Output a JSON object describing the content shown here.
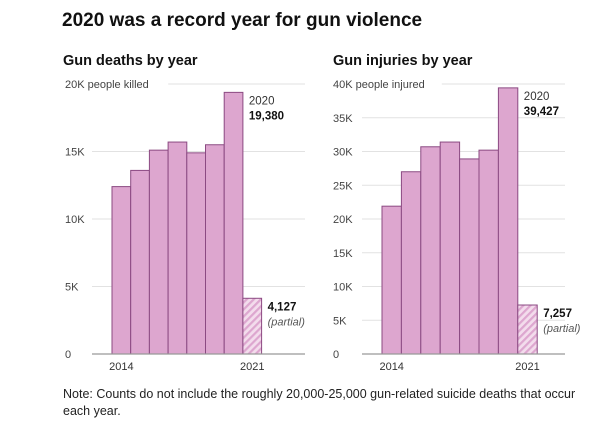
{
  "title": "2020 was a record year for gun violence",
  "note": "Note: Counts do not include the roughly 20,000-25,000 gun-related suicide deaths that occur each year.",
  "colors": {
    "bar_fill": "#dda6cf",
    "bar_stroke": "#8b4a82",
    "hatch_fill": "#f3dcec",
    "grid": "#e2e2e2",
    "axis": "#999999"
  },
  "chart_data": [
    {
      "type": "bar",
      "title": "Gun deaths by year",
      "ylabel": "people killed",
      "top_tick_label": "20K people killed",
      "ylim": [
        0,
        20000
      ],
      "yticks": [
        0,
        5000,
        10000,
        15000,
        20000
      ],
      "ytick_labels": [
        "0",
        "5K",
        "10K",
        "15K",
        "20K people killed"
      ],
      "categories": [
        "2014",
        "2015",
        "2016",
        "2017",
        "2018",
        "2019",
        "2020",
        "2021"
      ],
      "x_tick_labels_shown": [
        "2014",
        "2021"
      ],
      "values": [
        12400,
        13600,
        15100,
        15700,
        14900,
        15500,
        19380,
        4127
      ],
      "partial": [
        false,
        false,
        false,
        false,
        false,
        false,
        false,
        true
      ],
      "annotations": [
        {
          "category": "2020",
          "label": "2020",
          "value_label": "19,380"
        },
        {
          "category": "2021",
          "value_label": "4,127",
          "note": "(partial)"
        }
      ],
      "grid": true
    },
    {
      "type": "bar",
      "title": "Gun injuries by year",
      "ylabel": "people injured",
      "top_tick_label": "40K people injured",
      "ylim": [
        0,
        40000
      ],
      "yticks": [
        0,
        5000,
        10000,
        15000,
        20000,
        25000,
        30000,
        35000,
        40000
      ],
      "ytick_labels": [
        "0",
        "5K",
        "10K",
        "15K",
        "20K",
        "25K",
        "30K",
        "35K",
        "40K people injured"
      ],
      "categories": [
        "2014",
        "2015",
        "2016",
        "2017",
        "2018",
        "2019",
        "2020",
        "2021"
      ],
      "x_tick_labels_shown": [
        "2014",
        "2021"
      ],
      "values": [
        21900,
        27000,
        30700,
        31400,
        28900,
        30200,
        39427,
        7257
      ],
      "partial": [
        false,
        false,
        false,
        false,
        false,
        false,
        false,
        true
      ],
      "annotations": [
        {
          "category": "2020",
          "label": "2020",
          "value_label": "39,427"
        },
        {
          "category": "2021",
          "value_label": "7,257",
          "note": "(partial)"
        }
      ],
      "grid": true
    }
  ]
}
